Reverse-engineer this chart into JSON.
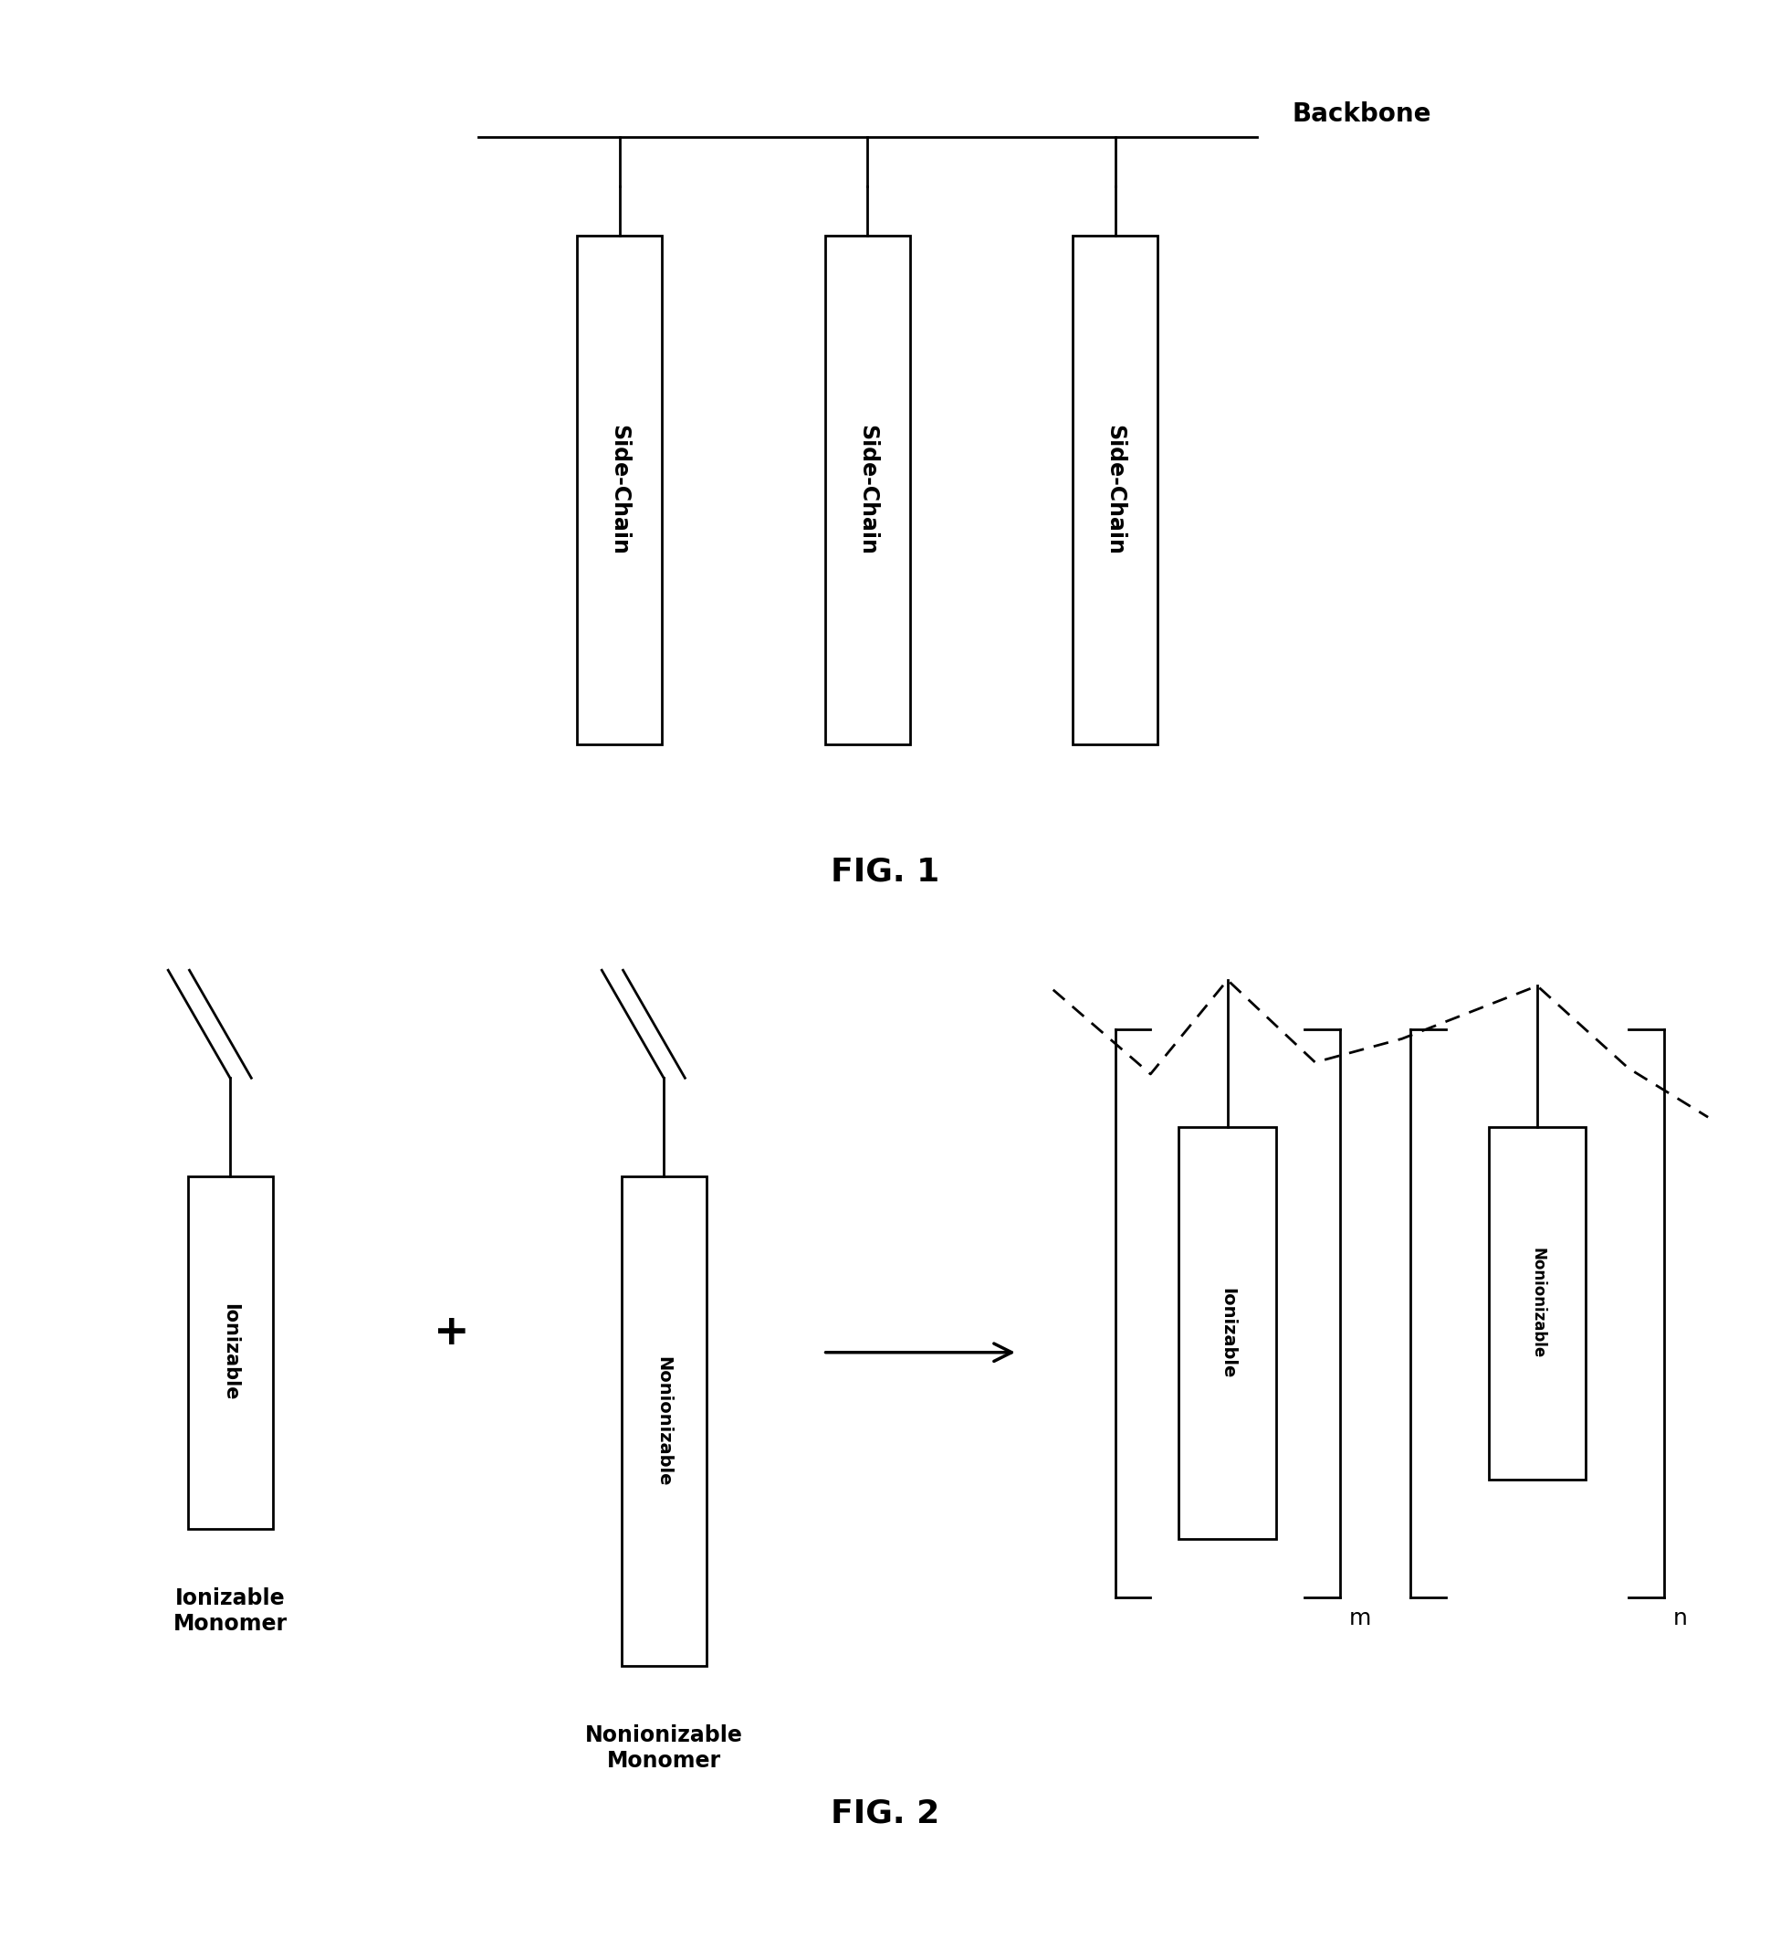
{
  "fig_width": 19.39,
  "fig_height": 21.46,
  "bg_color": "#ffffff",
  "fig1_title": "FIG. 1",
  "fig2_title": "FIG. 2",
  "backbone_label": "Backbone",
  "side_chain_label": "Side-Chain",
  "ionizable_label": "Ionizable",
  "nonionizable_label": "Nonionizable",
  "ionizable_monomer_label": "Ionizable\nMonomer",
  "nonionizable_monomer_label": "Nonionizable\nMonomer",
  "lw": 2.0
}
